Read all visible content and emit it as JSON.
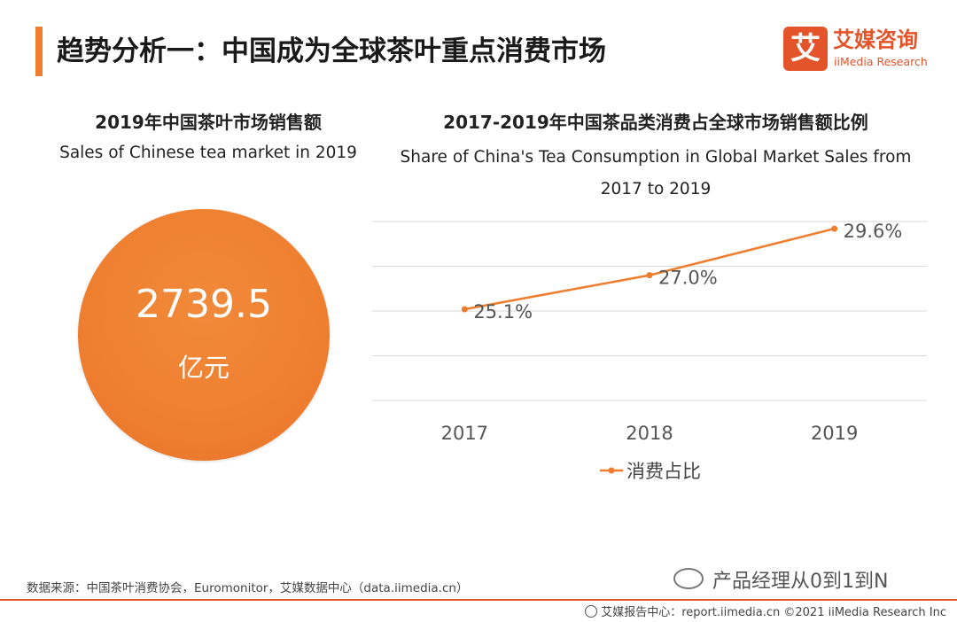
{
  "header": {
    "title": "趋势分析一：中国成为全球茶叶重点消费市场"
  },
  "logo": {
    "mark": "艾",
    "name_cn": "艾媒咨询",
    "name_en": "iiMedia Research"
  },
  "left_panel": {
    "title_cn": "2019年中国茶叶市场销售额",
    "title_en": "Sales of Chinese tea market in 2019",
    "value": "2739.5",
    "unit": "亿元"
  },
  "chart_data": {
    "type": "line",
    "title": "2017-2019年中国茶品类消费占全球市场销售额比例",
    "subtitle": "Share of China's Tea Consumption in Global Market Sales from 2017 to 2019",
    "categories": [
      "2017",
      "2018",
      "2019"
    ],
    "series": [
      {
        "name": "消费占比",
        "values": [
          25.1,
          27.0,
          29.6
        ],
        "labels": [
          "25.1%",
          "27.0%",
          "29.6%"
        ],
        "color": "#f07c2e"
      }
    ],
    "ylim": [
      20.0,
      30.0
    ],
    "grid": true,
    "legend": "bottom-center"
  },
  "footer": {
    "source": "数据来源：中国茶叶消费协会，Euromonitor，艾媒数据中心（data.iimedia.cn）",
    "watermark": "产品经理从0到1到N",
    "copyright": "艾媒报告中心：report.iimedia.cn   ©2021  iiMedia Research  Inc"
  }
}
